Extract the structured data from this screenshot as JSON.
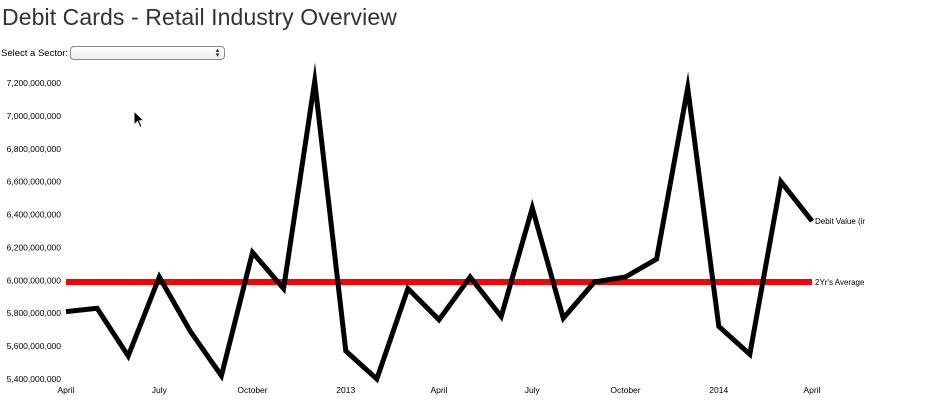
{
  "page": {
    "title": "Debit Cards - Retail Industry Overview"
  },
  "controls": {
    "sector_label": "Select a Sector:",
    "sector_value": ""
  },
  "colors": {
    "series_line": "#000000",
    "average_line": "#ff0000"
  },
  "chart_data": {
    "type": "line",
    "title": "",
    "xlabel": "",
    "ylabel": "",
    "ylim": [
      5400000000,
      7200000000
    ],
    "y_ticks": [
      "5,400,000,000",
      "5,600,000,000",
      "5,800,000,000",
      "6,000,000,000",
      "6,200,000,000",
      "6,400,000,000",
      "6,600,000,000",
      "6,800,000,000",
      "7,000,000,000",
      "7,200,000,000"
    ],
    "x_ticks": [
      "April",
      "July",
      "October",
      "2013",
      "April",
      "July",
      "October",
      "2014",
      "April"
    ],
    "x": [
      "2012-04",
      "2012-05",
      "2012-06",
      "2012-07",
      "2012-08",
      "2012-09",
      "2012-10",
      "2012-11",
      "2012-12",
      "2013-01",
      "2013-02",
      "2013-03",
      "2013-04",
      "2013-05",
      "2013-06",
      "2013-07",
      "2013-08",
      "2013-09",
      "2013-10",
      "2013-11",
      "2013-12",
      "2014-01",
      "2014-02",
      "2014-03",
      "2014-04"
    ],
    "series": [
      {
        "name": "Debit Value (ir",
        "values": [
          5810000000,
          5830000000,
          5540000000,
          6020000000,
          5690000000,
          5420000000,
          6170000000,
          5950000000,
          7210000000,
          5570000000,
          5400000000,
          5950000000,
          5760000000,
          6020000000,
          5780000000,
          6440000000,
          5770000000,
          5990000000,
          6020000000,
          6130000000,
          7170000000,
          5720000000,
          5550000000,
          6600000000,
          6360000000
        ]
      },
      {
        "name": "2Yr's Average",
        "values": [
          5990000000,
          5990000000,
          5990000000,
          5990000000,
          5990000000,
          5990000000,
          5990000000,
          5990000000,
          5990000000,
          5990000000,
          5990000000,
          5990000000,
          5990000000,
          5990000000,
          5990000000,
          5990000000,
          5990000000,
          5990000000,
          5990000000,
          5990000000,
          5990000000,
          5990000000,
          5990000000,
          5990000000,
          5990000000
        ]
      }
    ],
    "grid": false,
    "legend": "right"
  }
}
